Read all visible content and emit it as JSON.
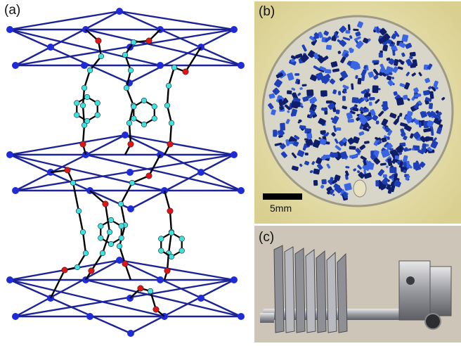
{
  "figure": {
    "panel_a": {
      "label": "(a)"
    },
    "panel_b": {
      "label": "(b)",
      "scale_bar_text": "5mm"
    },
    "panel_c": {
      "label": "(c)"
    }
  },
  "colors": {
    "lattice_line": "#1c2396",
    "lattice_node": "#1f2bd6",
    "linker_bond": "#000000",
    "oxygen_atom": "#e01515",
    "carbon_atom": "#3ee0e0",
    "crystal_blue": "#1d3fb8",
    "background_disc": "#d8d6c8",
    "holder_backdrop": "#ece6b4"
  }
}
